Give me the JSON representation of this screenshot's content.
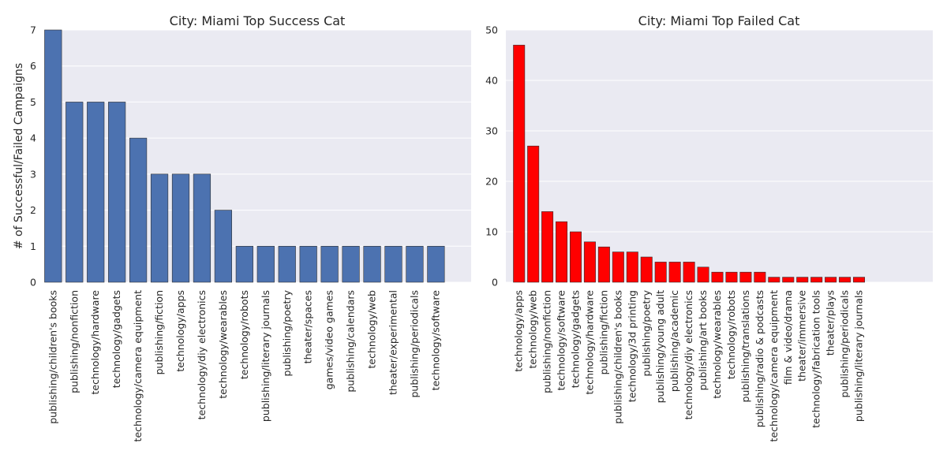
{
  "chart_data": [
    {
      "type": "bar",
      "title": "City: Miami Top Success Cat",
      "xlabel": "",
      "ylabel": "# of Successful/Failed Campaigns",
      "ylim": [
        0,
        7
      ],
      "yticks": [
        0,
        1,
        2,
        3,
        4,
        5,
        6,
        7
      ],
      "bar_color": "#4c72b0",
      "grid": true,
      "categories": [
        "publishing/children's books",
        "publishing/nonfiction",
        "technology/hardware",
        "technology/gadgets",
        "technology/camera equipment",
        "publishing/fiction",
        "technology/apps",
        "technology/diy electronics",
        "technology/wearables",
        "technology/robots",
        "publishing/literary journals",
        "publishing/poetry",
        "theater/spaces",
        "games/video games",
        "publishing/calendars",
        "technology/web",
        "theater/experimental",
        "publishing/periodicals",
        "technology/software"
      ],
      "values": [
        7,
        5,
        5,
        5,
        4,
        3,
        3,
        3,
        2,
        1,
        1,
        1,
        1,
        1,
        1,
        1,
        1,
        1,
        1
      ]
    },
    {
      "type": "bar",
      "title": "City: Miami Top Failed Cat",
      "xlabel": "",
      "ylabel": "",
      "ylim": [
        0,
        50
      ],
      "yticks": [
        0,
        10,
        20,
        30,
        40,
        50
      ],
      "bar_color": "#ff0000",
      "grid": true,
      "categories": [
        "technology/apps",
        "technology/web",
        "publishing/nonfiction",
        "technology/software",
        "technology/gadgets",
        "technology/hardware",
        "publishing/fiction",
        "publishing/children's books",
        "technology/3d printing",
        "publishing/poetry",
        "publishing/young adult",
        "publishing/academic",
        "technology/diy electronics",
        "publishing/art books",
        "technology/wearables",
        "technology/robots",
        "publishing/translations",
        "publishing/radio & podcasts",
        "technology/camera equipment",
        "film & video/drama",
        "theater/immersive",
        "technology/fabrication tools",
        "theater/plays",
        "publishing/periodicals",
        "publishing/literary journals"
      ],
      "values": [
        47,
        27,
        14,
        12,
        10,
        8,
        7,
        6,
        6,
        5,
        4,
        4,
        4,
        3,
        2,
        2,
        2,
        2,
        1,
        1,
        1,
        1,
        1,
        1,
        1
      ]
    }
  ]
}
